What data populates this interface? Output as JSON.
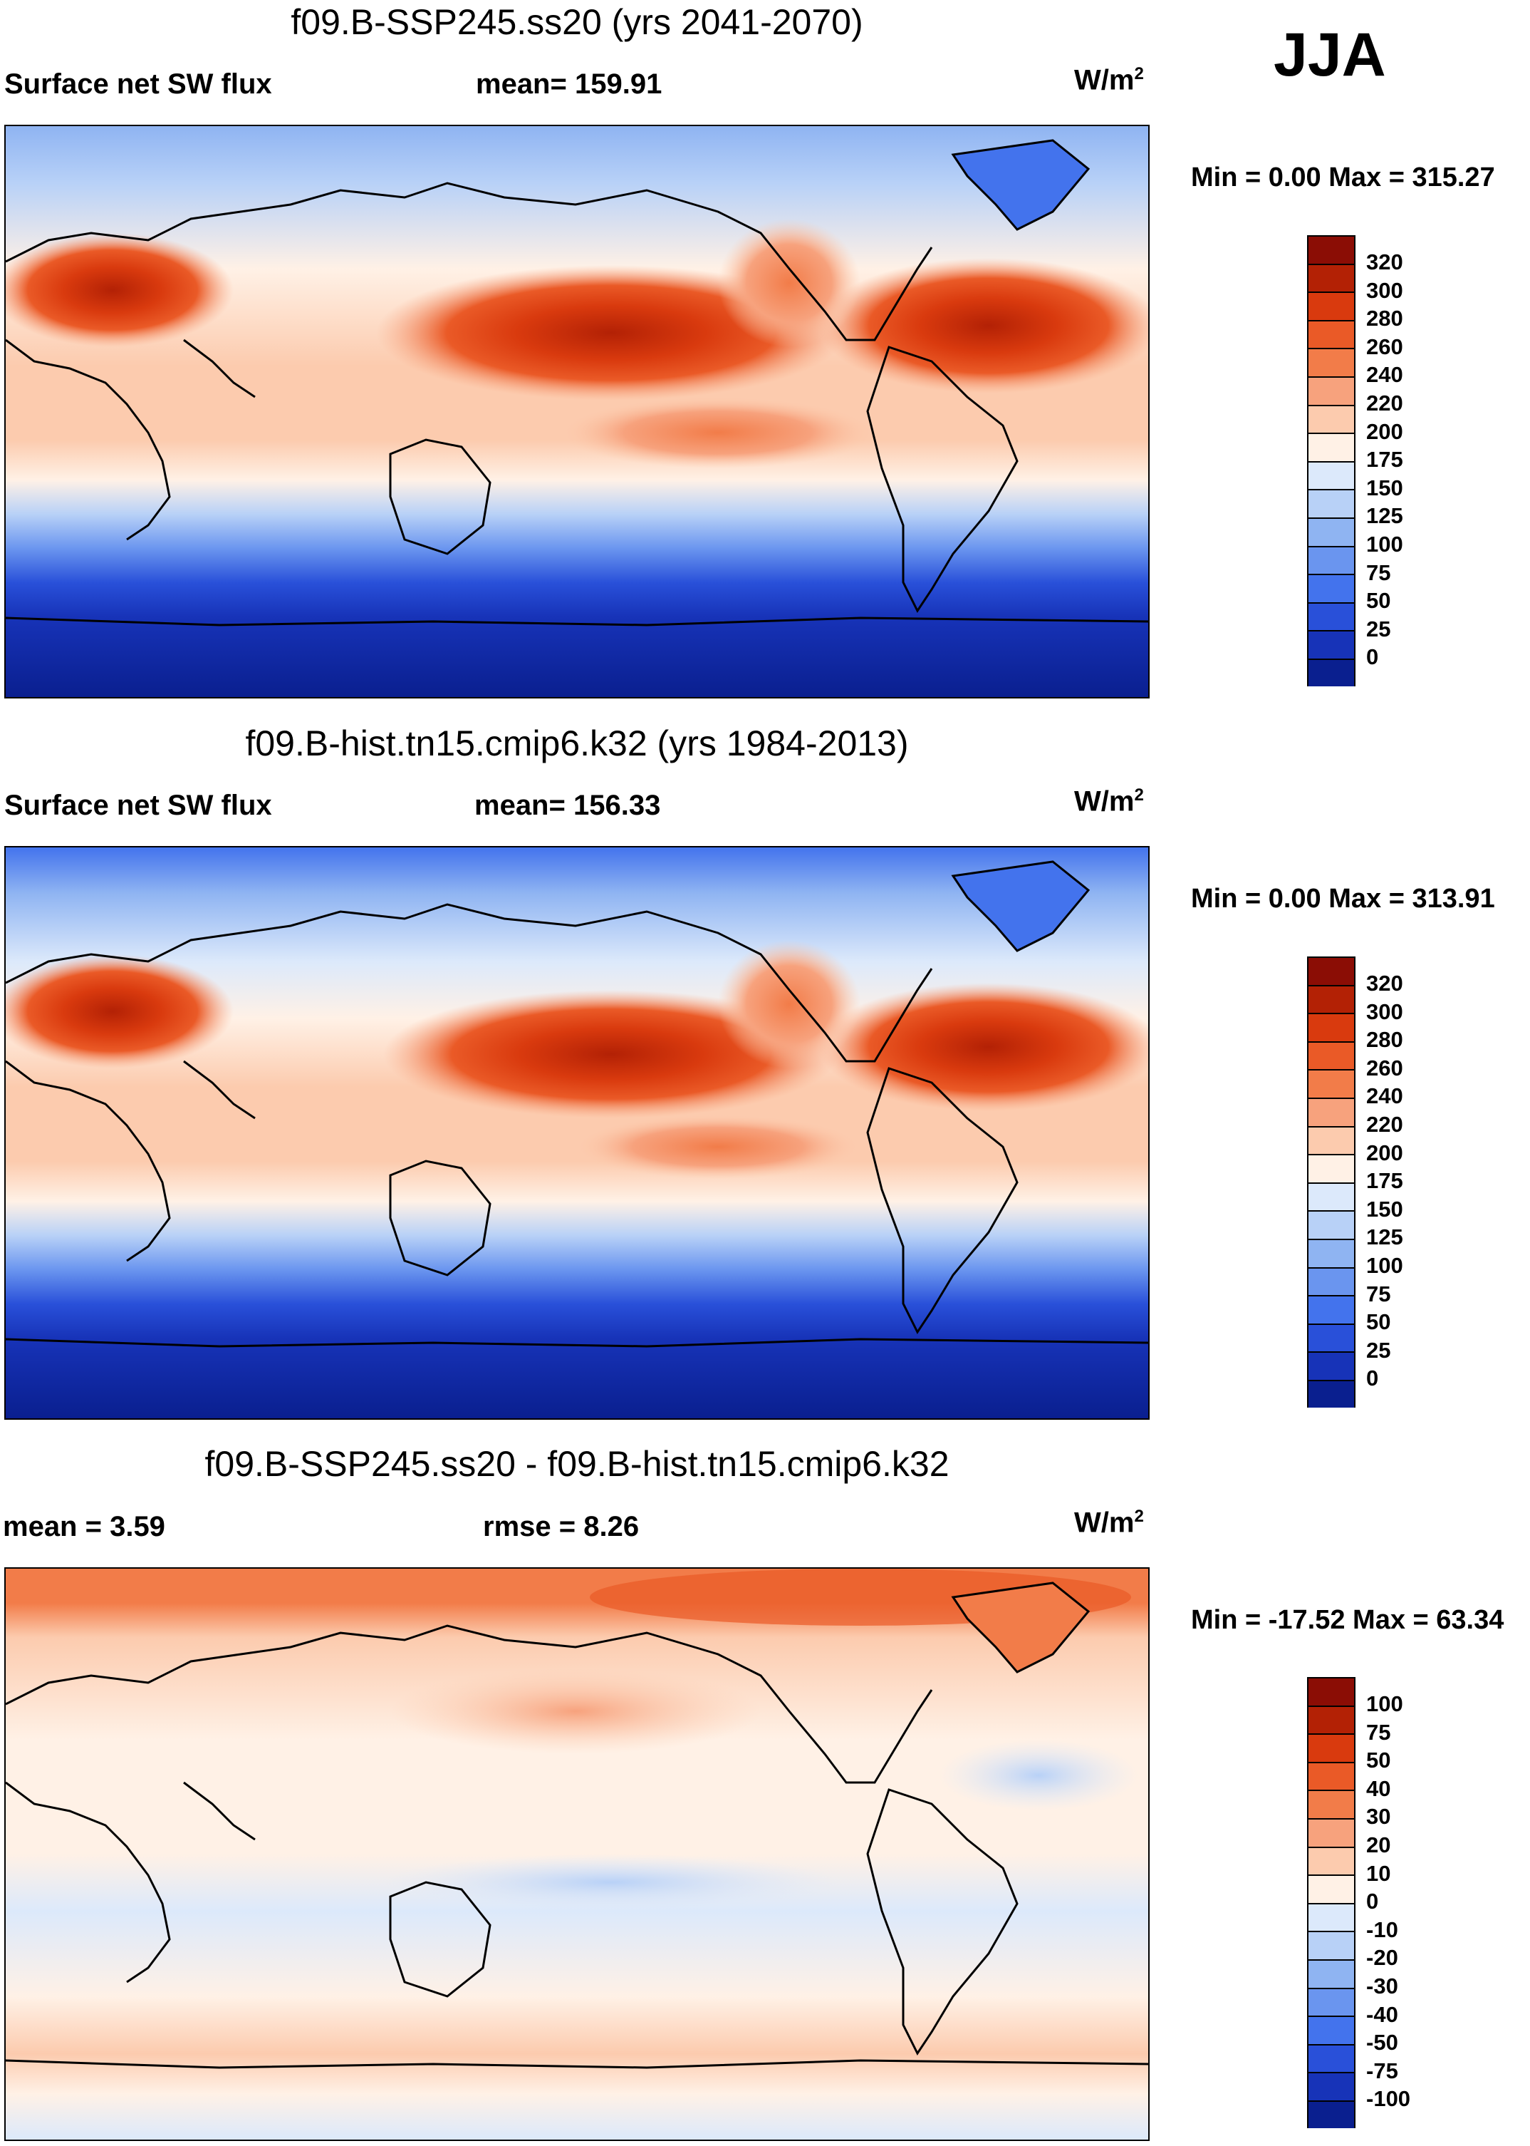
{
  "season": "JJA",
  "panels": [
    {
      "title": "f09.B-SSP245.ss20 (yrs 2041-2070)",
      "left_label": "Surface net SW flux",
      "mid_label": "mean= 159.91",
      "units_base": "W/m",
      "units_sup": "2",
      "minmax": "Min =   0.00 Max = 315.27",
      "colorbar_ticks": [
        "320",
        "300",
        "280",
        "260",
        "240",
        "220",
        "200",
        "175",
        "150",
        "125",
        "100",
        "75",
        "50",
        "25",
        "0"
      ],
      "colorbar_colors": [
        "#8b0d05",
        "#b32105",
        "#d93a0e",
        "#ea5a27",
        "#f27c49",
        "#f7a27d",
        "#fccbae",
        "#fff1e6",
        "#dce9fb",
        "#b8d1f7",
        "#8fb4f2",
        "#6a95ef",
        "#4373ed",
        "#2950d9",
        "#1733b8",
        "#0a1f8f"
      ]
    },
    {
      "title": "f09.B-hist.tn15.cmip6.k32 (yrs 1984-2013)",
      "left_label": "Surface net SW flux",
      "mid_label": "mean= 156.33",
      "units_base": "W/m",
      "units_sup": "2",
      "minmax": "Min =   0.00 Max = 313.91",
      "colorbar_ticks": [
        "320",
        "300",
        "280",
        "260",
        "240",
        "220",
        "200",
        "175",
        "150",
        "125",
        "100",
        "75",
        "50",
        "25",
        "0"
      ],
      "colorbar_colors": [
        "#8b0d05",
        "#b32105",
        "#d93a0e",
        "#ea5a27",
        "#f27c49",
        "#f7a27d",
        "#fccbae",
        "#fff1e6",
        "#dce9fb",
        "#b8d1f7",
        "#8fb4f2",
        "#6a95ef",
        "#4373ed",
        "#2950d9",
        "#1733b8",
        "#0a1f8f"
      ]
    },
    {
      "title": "f09.B-SSP245.ss20 - f09.B-hist.tn15.cmip6.k32",
      "left_label": "mean =   3.59",
      "mid_label": "rmse =   8.26",
      "units_base": "W/m",
      "units_sup": "2",
      "minmax": "Min = -17.52 Max =  63.34",
      "colorbar_ticks": [
        "100",
        "75",
        "50",
        "40",
        "30",
        "20",
        "10",
        "0",
        "-10",
        "-20",
        "-30",
        "-40",
        "-50",
        "-75",
        "-100"
      ],
      "colorbar_colors": [
        "#8b0d05",
        "#b32105",
        "#d93a0e",
        "#ea5a27",
        "#f27c49",
        "#f7a27d",
        "#fccbae",
        "#fff1e6",
        "#dce9fb",
        "#b8d1f7",
        "#8fb4f2",
        "#6a95ef",
        "#4373ed",
        "#2950d9",
        "#1733b8",
        "#0a1f8f"
      ]
    }
  ]
}
